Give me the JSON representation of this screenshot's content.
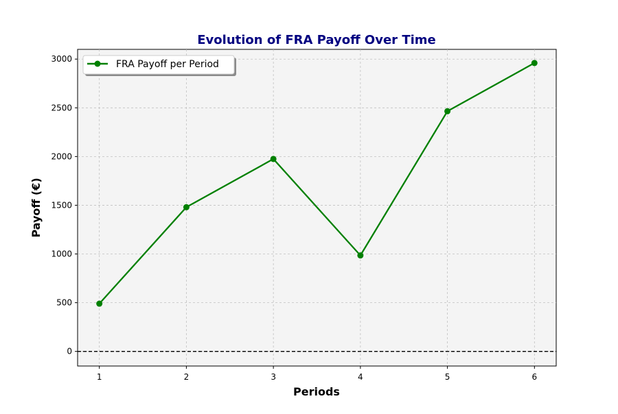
{
  "chart_data": {
    "type": "line",
    "title": "Evolution of FRA Payoff Over Time",
    "xlabel": "Periods",
    "ylabel": "Payoff (€)",
    "x": [
      1,
      2,
      3,
      4,
      5,
      6
    ],
    "xticks": [
      "1",
      "2",
      "3",
      "4",
      "5",
      "6"
    ],
    "yticks": [
      "0",
      "500",
      "1000",
      "1500",
      "2000",
      "2500",
      "3000"
    ],
    "ytick_values": [
      0,
      500,
      1000,
      1500,
      2000,
      2500,
      3000
    ],
    "xlim": [
      0.75,
      6.25
    ],
    "ylim": [
      -150,
      3100
    ],
    "grid": true,
    "legend_position": "top-left",
    "reference_line": {
      "y": 0,
      "style": "dashed",
      "color": "#000000"
    },
    "series": [
      {
        "name": "FRA Payoff per Period",
        "values": [
          490,
          1480,
          1975,
          985,
          2465,
          2960
        ],
        "color": "#008000",
        "marker": "circle"
      }
    ],
    "colors": {
      "title": "#000080",
      "plot_background": "#f4f4f4",
      "grid": "#c0c0c0"
    }
  }
}
